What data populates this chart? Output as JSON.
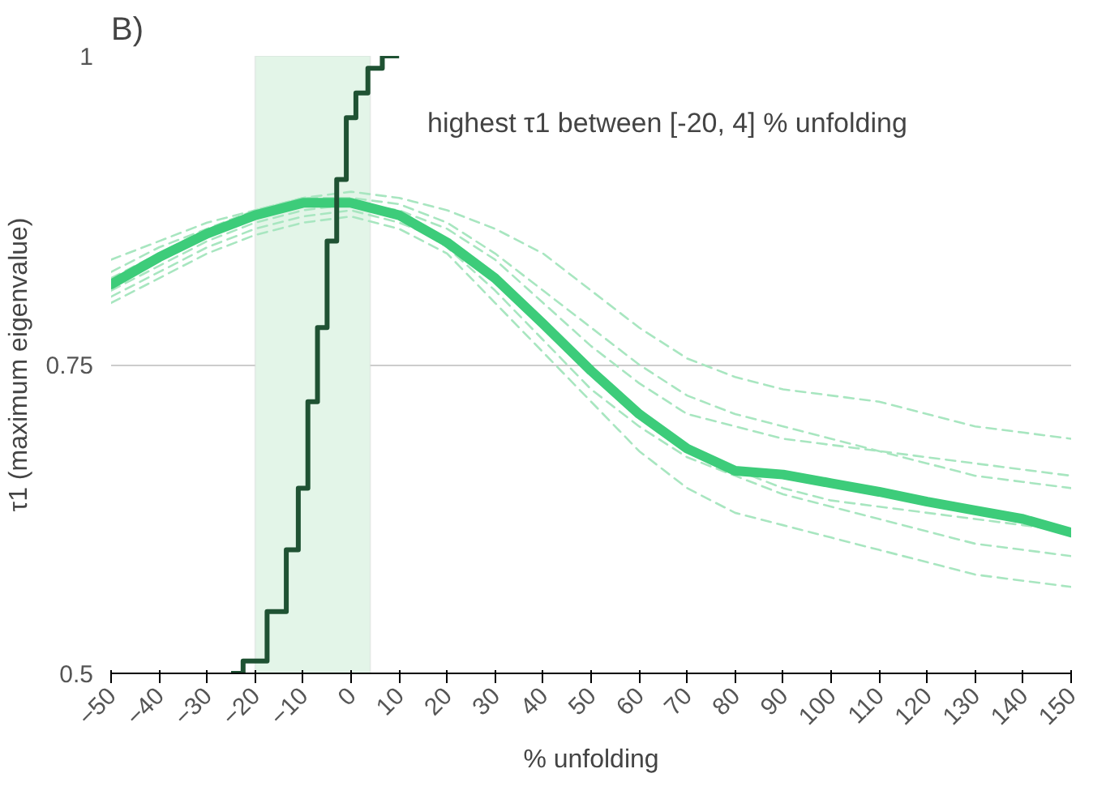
{
  "chart_data": {
    "type": "line",
    "title": "B)",
    "xlabel": "% unfolding",
    "ylabel": "τ1 (maximum eigenvalue)",
    "annotations": [
      "highest τ1 between [-20, 4] % unfolding"
    ],
    "x": [
      -50,
      -40,
      -30,
      -20,
      -10,
      0,
      10,
      20,
      30,
      40,
      50,
      60,
      70,
      80,
      90,
      100,
      110,
      120,
      130,
      140,
      150
    ],
    "xlim": [
      -50,
      150
    ],
    "xticks": [
      -50,
      -40,
      -30,
      -20,
      -10,
      0,
      10,
      20,
      30,
      40,
      50,
      60,
      70,
      80,
      90,
      100,
      110,
      120,
      130,
      140,
      150
    ],
    "ylim": [
      0.5,
      1
    ],
    "yticks": [
      0.5,
      0.75,
      1
    ],
    "grid": "y",
    "line_style": "dashed",
    "bands": [
      {
        "axis": "x",
        "from": -20,
        "to": 4,
        "color": "#e3f5e8"
      }
    ],
    "series": [
      {
        "color": "#a8e6c0",
        "values": [
          0.835,
          0.85,
          0.865,
          0.875,
          0.885,
          0.89,
          0.885,
          0.875,
          0.86,
          0.84,
          0.81,
          0.78,
          0.755,
          0.74,
          0.73,
          0.725,
          0.72,
          0.71,
          0.7,
          0.695,
          0.69
        ]
      },
      {
        "color": "#a8e6c0",
        "values": [
          0.8,
          0.82,
          0.84,
          0.855,
          0.865,
          0.87,
          0.86,
          0.84,
          0.8,
          0.76,
          0.72,
          0.68,
          0.65,
          0.63,
          0.62,
          0.61,
          0.6,
          0.59,
          0.58,
          0.575,
          0.57
        ]
      },
      {
        "color": "#a8e6c0",
        "values": [
          0.81,
          0.83,
          0.85,
          0.865,
          0.875,
          0.88,
          0.875,
          0.86,
          0.835,
          0.8,
          0.765,
          0.735,
          0.71,
          0.7,
          0.69,
          0.685,
          0.68,
          0.675,
          0.67,
          0.665,
          0.66
        ]
      },
      {
        "color": "#a8e6c0",
        "values": [
          0.82,
          0.84,
          0.86,
          0.87,
          0.88,
          0.88,
          0.87,
          0.845,
          0.81,
          0.77,
          0.73,
          0.7,
          0.675,
          0.66,
          0.645,
          0.635,
          0.625,
          0.615,
          0.605,
          0.6,
          0.595
        ]
      },
      {
        "color": "#a8e6c0",
        "values": [
          0.825,
          0.845,
          0.86,
          0.875,
          0.885,
          0.885,
          0.88,
          0.865,
          0.84,
          0.81,
          0.78,
          0.75,
          0.725,
          0.71,
          0.7,
          0.69,
          0.68,
          0.67,
          0.66,
          0.655,
          0.65
        ]
      },
      {
        "color": "#a8e6c0",
        "values": [
          0.805,
          0.825,
          0.845,
          0.86,
          0.87,
          0.875,
          0.865,
          0.85,
          0.82,
          0.785,
          0.745,
          0.71,
          0.685,
          0.665,
          0.65,
          0.64,
          0.635,
          0.63,
          0.625,
          0.62,
          0.615
        ]
      },
      {
        "color": "#3dcc7a",
        "line_style": "solid",
        "values": [
          0.815,
          0.837,
          0.856,
          0.871,
          0.881,
          0.881,
          0.871,
          0.849,
          0.82,
          0.783,
          0.745,
          0.71,
          0.682,
          0.664,
          0.661,
          0.654,
          0.647,
          0.639,
          0.632,
          0.625,
          0.614
        ]
      },
      {
        "type": "step",
        "color": "#1f5233",
        "line_style": "solid",
        "x": [
          -25,
          -20,
          -15,
          -12,
          -10,
          -8,
          -6,
          -4,
          -2,
          0,
          2,
          5,
          8,
          10
        ],
        "values": [
          0.5,
          0.51,
          0.55,
          0.6,
          0.65,
          0.72,
          0.78,
          0.85,
          0.9,
          0.95,
          0.97,
          0.99,
          1.0,
          1.0
        ]
      }
    ]
  }
}
